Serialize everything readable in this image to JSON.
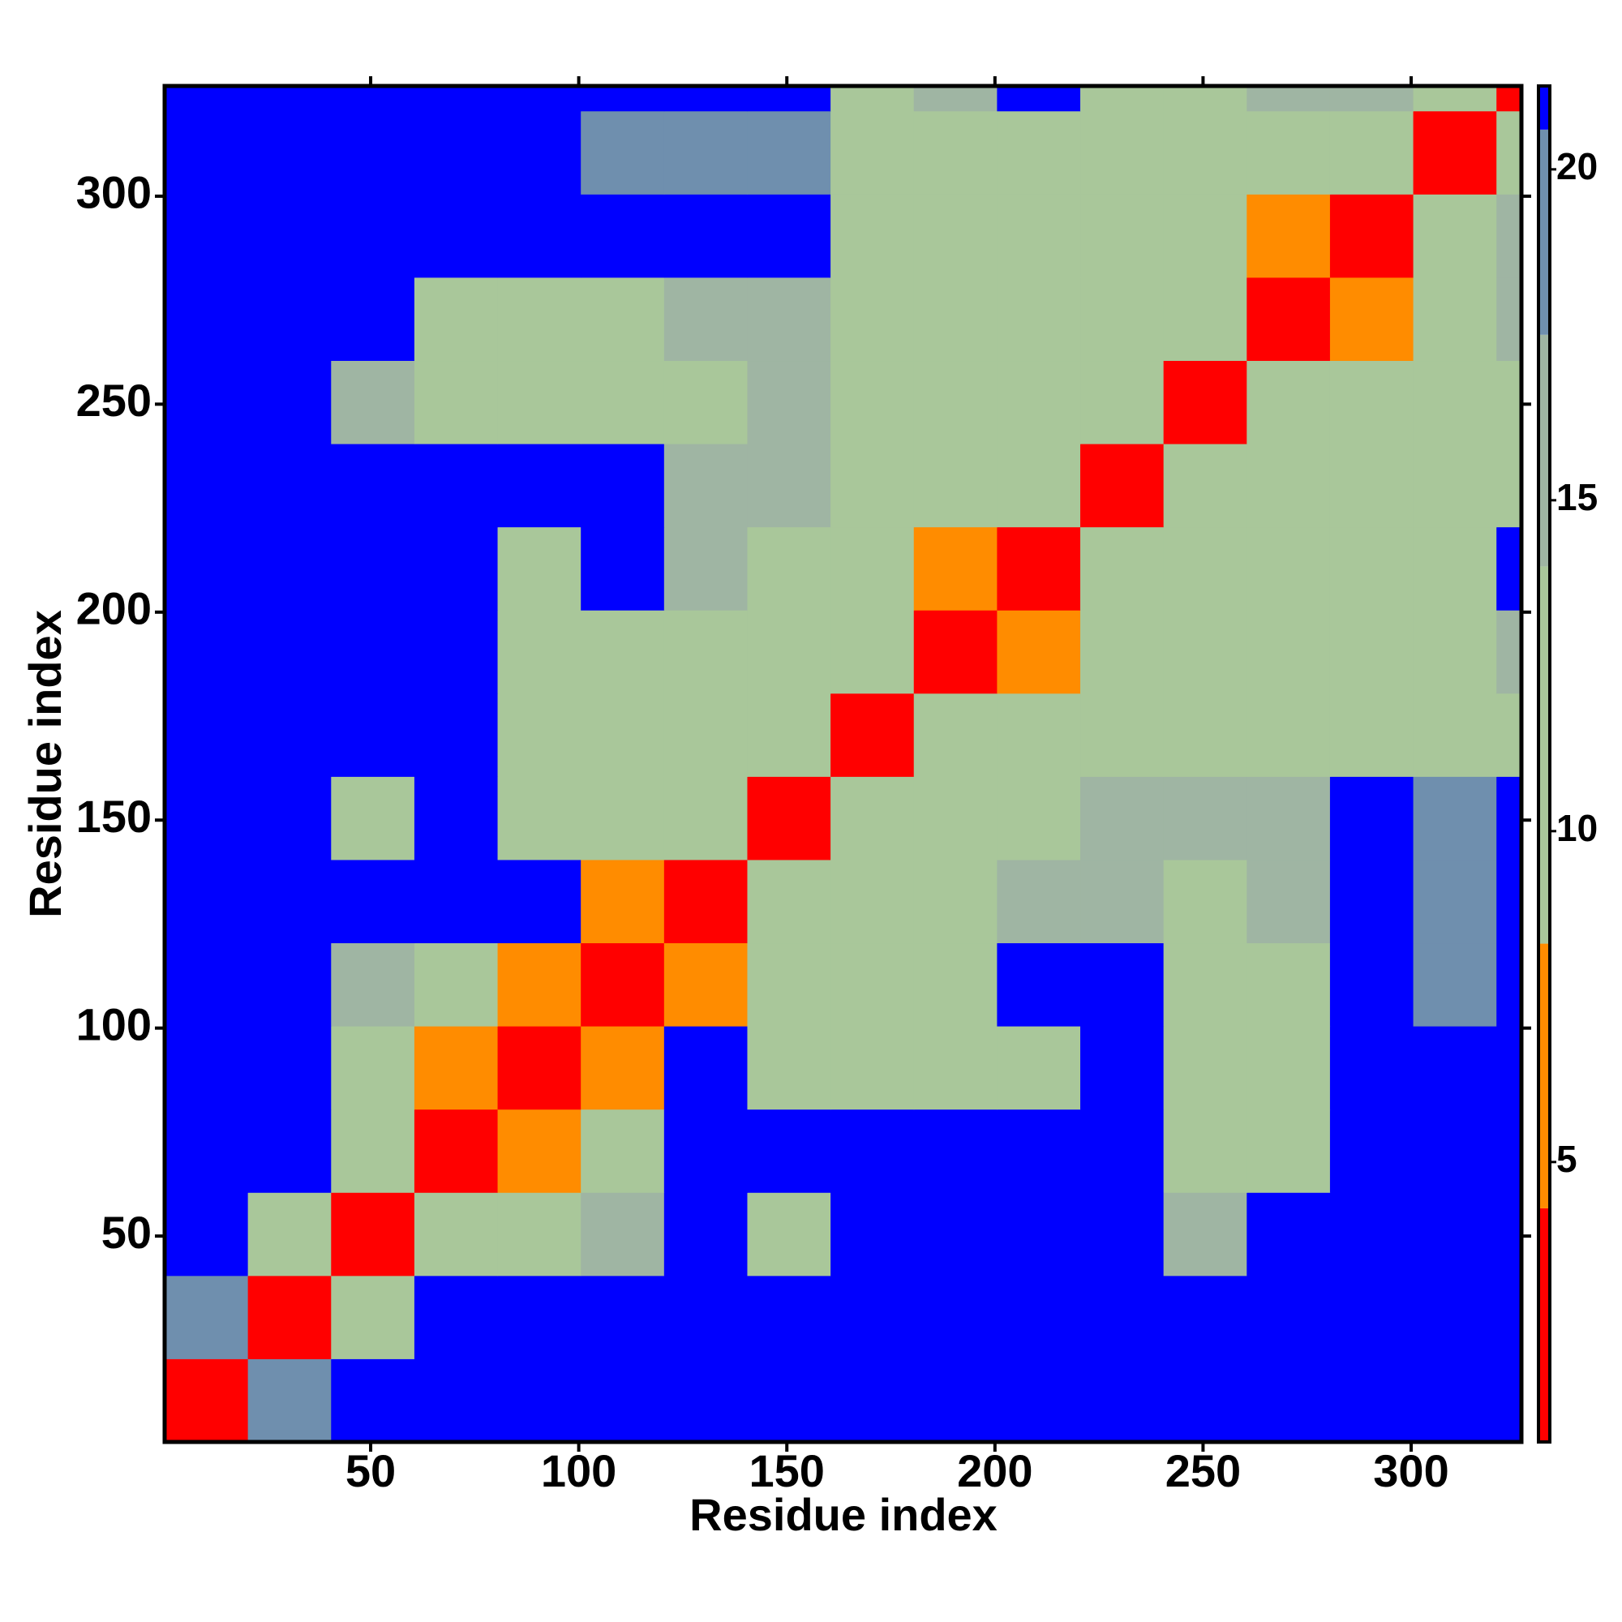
{
  "chart_data": {
    "type": "heatmap",
    "xlabel": "Residue index",
    "ylabel": "Residue index",
    "xlim": [
      0.5,
      326.5
    ],
    "ylim": [
      0.5,
      326.5
    ],
    "xticks": [
      50,
      100,
      150,
      200,
      250,
      300
    ],
    "yticks": [
      50,
      100,
      150,
      200,
      250,
      300
    ],
    "xbins": [
      0.5,
      20.5,
      40.5,
      60.5,
      80.5,
      100.5,
      120.5,
      140.5,
      160.5,
      180.5,
      200.5,
      220.5,
      240.5,
      260.5,
      280.5,
      300.5,
      320.5,
      326.5
    ],
    "ybins": [
      0.5,
      20.5,
      40.5,
      60.5,
      80.5,
      100.5,
      120.5,
      140.5,
      160.5,
      180.5,
      200.5,
      220.5,
      240.5,
      260.5,
      280.5,
      300.5,
      320.5,
      326.5
    ],
    "z": [
      [
        4,
        18,
        21,
        21,
        21,
        21,
        21,
        21,
        21,
        21,
        21,
        21,
        21,
        21,
        21,
        21,
        21
      ],
      [
        18,
        4,
        14,
        21,
        21,
        21,
        21,
        21,
        21,
        21,
        21,
        21,
        21,
        21,
        21,
        21,
        21
      ],
      [
        21,
        14,
        4,
        9,
        12,
        15,
        21,
        12,
        21,
        21,
        21,
        21,
        16,
        21,
        21,
        21,
        21
      ],
      [
        21,
        21,
        9,
        4,
        8,
        11,
        21,
        21,
        21,
        21,
        21,
        21,
        12,
        12,
        21,
        21,
        21
      ],
      [
        21,
        21,
        12,
        8,
        4,
        8,
        21,
        11,
        9,
        14,
        13,
        21,
        11,
        13,
        21,
        21,
        21
      ],
      [
        21,
        21,
        15,
        11,
        8,
        4,
        8,
        10,
        12,
        14,
        21,
        21,
        11,
        12,
        21,
        19,
        21
      ],
      [
        21,
        21,
        21,
        21,
        21,
        8,
        4,
        9,
        11,
        13,
        17,
        17,
        13,
        17,
        21,
        18,
        21
      ],
      [
        21,
        21,
        12,
        21,
        11,
        10,
        9,
        4,
        10,
        9,
        14,
        16,
        16,
        17,
        21,
        18,
        21
      ],
      [
        21,
        21,
        21,
        21,
        9,
        12,
        11,
        10,
        4,
        9,
        10,
        12,
        11,
        12,
        13,
        11,
        14
      ],
      [
        21,
        21,
        21,
        21,
        14,
        14,
        13,
        9,
        9,
        4,
        8,
        11,
        12,
        10,
        11,
        11,
        15
      ],
      [
        21,
        21,
        21,
        21,
        13,
        21,
        17,
        14,
        10,
        8,
        4,
        9,
        11,
        9,
        11,
        12,
        21
      ],
      [
        21,
        21,
        21,
        21,
        21,
        21,
        17,
        16,
        12,
        11,
        9,
        4,
        9,
        13,
        11,
        11,
        14
      ],
      [
        21,
        21,
        16,
        12,
        11,
        11,
        13,
        16,
        11,
        12,
        11,
        9,
        4,
        9,
        12,
        12,
        14
      ],
      [
        21,
        21,
        21,
        12,
        13,
        12,
        17,
        17,
        12,
        10,
        9,
        13,
        9,
        4,
        8,
        13,
        16
      ],
      [
        21,
        21,
        21,
        21,
        21,
        21,
        21,
        21,
        13,
        11,
        11,
        11,
        12,
        8,
        4,
        9,
        15
      ],
      [
        21,
        21,
        21,
        21,
        21,
        19,
        18,
        18,
        11,
        11,
        12,
        11,
        12,
        13,
        9,
        4,
        10
      ],
      [
        21,
        21,
        21,
        21,
        21,
        21,
        21,
        21,
        14,
        15,
        21,
        14,
        14,
        16,
        15,
        10,
        4
      ]
    ],
    "colorbar_lim": [
      0.77,
      21.26
    ],
    "colorbar_ticks": [
      5,
      10,
      15,
      20
    ],
    "colorscale": [
      {
        "value": 4.3,
        "color": "#ff0000"
      },
      {
        "value": 8.3,
        "color": "#ff8c00"
      },
      {
        "value": 14,
        "color": "#a9c79a"
      },
      {
        "value": 17.5,
        "color": "#9fb5a3"
      },
      {
        "value": 20.6,
        "color": "#6f8fae"
      },
      {
        "value": 21.26,
        "color": "#0000ff"
      }
    ]
  }
}
